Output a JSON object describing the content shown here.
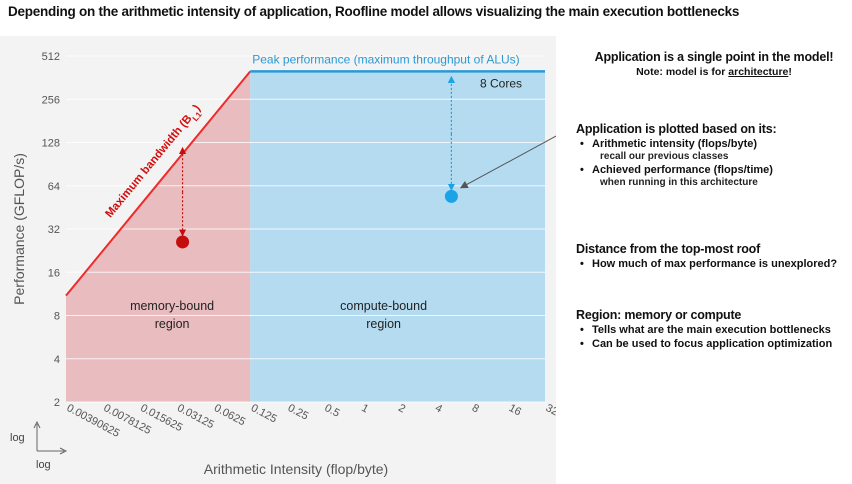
{
  "slide": {
    "title": "Depending on the arithmetic intensity of application, Roofline model allows visualizing the main execution bottlenecks"
  },
  "chart_data": {
    "type": "line",
    "xlabel": "Arithmetic Intensity (flop/byte)",
    "ylabel": "Performance (GFLOP/s)",
    "x_scale": "log",
    "y_scale": "log",
    "x_ticks": [
      "0.00390625",
      "0.0078125",
      "0.015625",
      "0.03125",
      "0.0625",
      "0.125",
      "0.25",
      "0.5",
      "1",
      "2",
      "4",
      "8",
      "16",
      "32"
    ],
    "y_ticks": [
      "2",
      "4",
      "8",
      "16",
      "32",
      "64",
      "128",
      "256",
      "512"
    ],
    "xlim": [
      0.00390625,
      32
    ],
    "ylim": [
      2,
      512
    ],
    "corner_labels": {
      "y_axis_scale": "log",
      "x_axis_scale": "log"
    },
    "roofline": {
      "bandwidth_label": "Maximum bandwidth (B",
      "bandwidth_subscript": "L1",
      "bandwidth_label_end": ")",
      "peak_label": "Peak performance (maximum throughput of ALUs)",
      "cores_label": "8 Cores",
      "points": [
        {
          "x": 0.00390625,
          "y": 11
        },
        {
          "x": 0.125,
          "y": 400
        },
        {
          "x": 32,
          "y": 400
        }
      ],
      "ridge_x": 0.125,
      "peak_y": 400
    },
    "regions": [
      {
        "line1": "memory-bound",
        "line2": "region",
        "color": "#e8b7b9"
      },
      {
        "line1": "compute-bound",
        "line2": "region",
        "color": "#a9d6ee"
      }
    ],
    "applications": [
      {
        "x": 0.035,
        "y": 26,
        "color": "#c40e0e",
        "roof_y": 128
      },
      {
        "x": 5.5,
        "y": 54,
        "color": "#1aa3e6",
        "roof_y": 400
      }
    ],
    "colors": {
      "memory_roof": "#ee2b2b",
      "compute_roof": "#2a9ad6"
    }
  },
  "notes": {
    "block1": {
      "heading": "Application is a single point in the model!",
      "sub_prefix": "Note: model is for ",
      "sub_underline": "architecture",
      "sub_suffix": "!"
    },
    "block2": {
      "heading": "Application is plotted based on its:",
      "bullets": [
        {
          "text": "Arithmetic intensity (flops/byte)",
          "detail": "recall our previous classes"
        },
        {
          "text": "Achieved performance (flops/time)",
          "detail": "when running in this architecture"
        }
      ]
    },
    "block3": {
      "heading": "Distance from the top-most roof",
      "bullets": [
        {
          "text": "How much of max performance is unexplored?"
        }
      ]
    },
    "block4": {
      "heading": "Region: memory or compute",
      "bullets": [
        {
          "text": "Tells what are the main execution bottlenecks"
        },
        {
          "text": "Can be used to focus application optimization"
        }
      ]
    }
  }
}
